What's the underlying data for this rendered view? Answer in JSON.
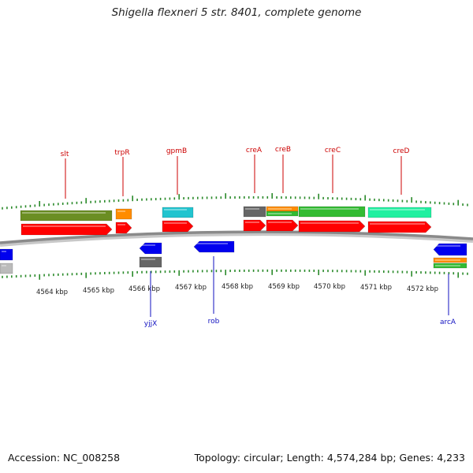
{
  "title": "Shigella flexneri 5 str. 8401, complete genome",
  "footer": {
    "accession": "Accession: NC_008258",
    "stats": "Topology: circular; Length: 4,574,284 bp; Genes: 4,233"
  },
  "axis_labels": [
    "4564 kbp",
    "4565 kbp",
    "4566 kbp",
    "4567 kbp",
    "4568 kbp",
    "4569 kbp",
    "4570 kbp",
    "4571 kbp",
    "4572 kbp"
  ],
  "colors": {
    "label_red": "#cc0000",
    "label_blue": "#1010c0",
    "tick_green": "#2a8a2a",
    "backbone": "#8a8a8a",
    "gene_red": "#ff0000",
    "gene_blue": "#0000ee",
    "olive": "#6b8e23",
    "orange": "#ff8c00",
    "cyan": "#22c4cf",
    "gray": "#666666",
    "green": "#33bb33",
    "aqua": "#20f0a0",
    "lightgray": "#bbbbbb"
  },
  "genes_top": [
    {
      "name": "slt",
      "color": "olive"
    },
    {
      "name": "trpR",
      "color": "orange"
    },
    {
      "name": "gpmB",
      "color": "cyan"
    },
    {
      "name": "creA",
      "color": "gray"
    },
    {
      "name": "creB",
      "color": "orange"
    },
    {
      "name": "creC",
      "color": "green"
    },
    {
      "name": "creD",
      "color": "aqua"
    }
  ],
  "genes_bottom": [
    {
      "name": "yjjX",
      "color": "gray"
    },
    {
      "name": "rob",
      "color": "gene_blue"
    },
    {
      "name": "arcA",
      "color": "orange"
    }
  ]
}
